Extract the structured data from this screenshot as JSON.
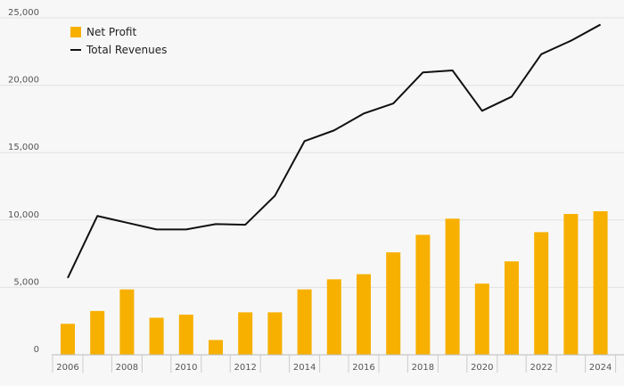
{
  "chart_data": {
    "type": "bar",
    "title": "",
    "xlabel": "",
    "ylabel": "",
    "ylim": [
      0,
      25000
    ],
    "yticks": [
      0,
      5000,
      10000,
      15000,
      20000,
      25000
    ],
    "ytick_labels": [
      "0",
      "5,000",
      "10,000",
      "15,000",
      "20,000",
      "25,000"
    ],
    "xtick_labels": [
      "2006",
      "2008",
      "2010",
      "2012",
      "2014",
      "2016",
      "2018",
      "2020",
      "2022",
      "2024"
    ],
    "categories": [
      "2006",
      "2007",
      "2008",
      "2009",
      "2010",
      "2011",
      "2012",
      "2013",
      "2014",
      "2015",
      "2016",
      "2017",
      "2018",
      "2019",
      "2020",
      "2021",
      "2022",
      "2023",
      "2024"
    ],
    "grid": true,
    "legend_position": "top-left",
    "series": [
      {
        "name": "Net Profit",
        "type": "bar",
        "color": "#f7b000",
        "values": [
          2300,
          3250,
          4850,
          2750,
          2980,
          1100,
          3150,
          3150,
          4850,
          5600,
          5980,
          7600,
          8900,
          10100,
          5280,
          6930,
          9100,
          10450,
          10650
        ]
      },
      {
        "name": "Total Revenues",
        "type": "line",
        "color": "#111111",
        "values": [
          5700,
          10300,
          9800,
          9300,
          9300,
          9700,
          9650,
          11800,
          15850,
          16650,
          17900,
          18650,
          20950,
          21100,
          18100,
          19150,
          22300,
          23300,
          24500
        ]
      }
    ]
  }
}
